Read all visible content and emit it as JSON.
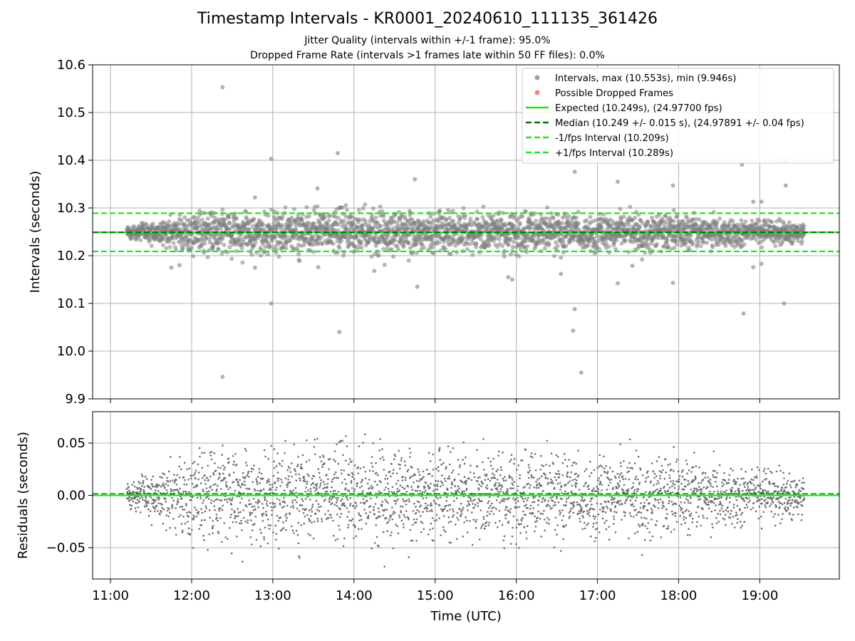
{
  "title": "Timestamp Intervals - KR0001_20240610_111135_361426",
  "subtitle_jitter": "Jitter Quality (intervals within +/-1 frame): 95.0%",
  "subtitle_dropped": "Dropped Frame Rate (intervals >1 frames late within 50 FF files): 0.0%",
  "colors": {
    "points": "#808080",
    "dropped": "#f05a5a",
    "expected": "#1ee61e",
    "median": "#0a6e0a",
    "fps_bounds": "#1ee61e",
    "grid": "#b0b0b0"
  },
  "chart_data": [
    {
      "type": "scatter",
      "panel": "top",
      "ylabel": "Intervals (seconds)",
      "ylim": [
        9.9,
        10.6
      ],
      "yticks": [
        9.9,
        10.0,
        10.1,
        10.2,
        10.3,
        10.4,
        10.5,
        10.6
      ],
      "ytick_labels": [
        "9.9",
        "10.0",
        "10.1",
        "10.2",
        "10.3",
        "10.4",
        "10.5",
        "10.6"
      ],
      "xlim_hours": [
        10.78,
        19.98
      ],
      "grid": true,
      "legend_position": "top-right",
      "legend": [
        {
          "label": "Intervals, max (10.553s), min (9.946s)",
          "kind": "marker",
          "color": "#808080"
        },
        {
          "label": "Possible Dropped Frames",
          "kind": "marker",
          "color": "#f05a5a"
        },
        {
          "label": "Expected (10.249s), (24.97700 fps)",
          "kind": "solid",
          "color": "#1ee61e"
        },
        {
          "label": "Median (10.249 +/- 0.015 s), (24.97891 +/- 0.04 fps)",
          "kind": "dashed",
          "color": "#0a6e0a"
        },
        {
          "label": "-1/fps Interval (10.209s)",
          "kind": "dashed",
          "color": "#1ee61e"
        },
        {
          "label": "+1/fps Interval (10.289s)",
          "kind": "dashed",
          "color": "#1ee61e"
        }
      ],
      "reference_lines": [
        {
          "name": "Expected",
          "y": 10.249,
          "style": "solid",
          "color": "#1ee61e"
        },
        {
          "name": "Median",
          "y": 10.249,
          "style": "dashed",
          "color": "#0a6e0a"
        },
        {
          "name": "-1/fps Interval",
          "y": 10.209,
          "style": "dashed",
          "color": "#1ee61e"
        },
        {
          "name": "+1/fps Interval",
          "y": 10.289,
          "style": "dashed",
          "color": "#1ee61e"
        }
      ],
      "dense_band": {
        "x_range_hours": [
          11.2,
          19.55
        ],
        "center": 10.249,
        "approx_points": 2950,
        "spread_envelope": [
          [
            11.2,
            0.006
          ],
          [
            11.7,
            0.012
          ],
          [
            12.0,
            0.022
          ],
          [
            13.0,
            0.022
          ],
          [
            15.0,
            0.021
          ],
          [
            16.0,
            0.02
          ],
          [
            17.0,
            0.018
          ],
          [
            18.0,
            0.017
          ],
          [
            19.0,
            0.013
          ],
          [
            19.55,
            0.009
          ]
        ]
      },
      "outliers": [
        {
          "x": 12.38,
          "y": 10.553
        },
        {
          "x": 12.38,
          "y": 9.946
        },
        {
          "x": 12.98,
          "y": 10.403
        },
        {
          "x": 12.98,
          "y": 10.1
        },
        {
          "x": 13.8,
          "y": 10.415
        },
        {
          "x": 13.82,
          "y": 10.04
        },
        {
          "x": 14.75,
          "y": 10.36
        },
        {
          "x": 14.78,
          "y": 10.135
        },
        {
          "x": 15.95,
          "y": 10.15
        },
        {
          "x": 15.9,
          "y": 10.155
        },
        {
          "x": 16.72,
          "y": 10.376
        },
        {
          "x": 16.72,
          "y": 10.088
        },
        {
          "x": 16.7,
          "y": 10.043
        },
        {
          "x": 16.8,
          "y": 9.955
        },
        {
          "x": 17.25,
          "y": 10.355
        },
        {
          "x": 17.25,
          "y": 10.142
        },
        {
          "x": 17.93,
          "y": 10.347
        },
        {
          "x": 17.93,
          "y": 10.143
        },
        {
          "x": 18.78,
          "y": 10.391
        },
        {
          "x": 18.8,
          "y": 10.079
        },
        {
          "x": 19.3,
          "y": 10.4
        },
        {
          "x": 19.3,
          "y": 10.1
        },
        {
          "x": 19.32,
          "y": 10.347
        },
        {
          "x": 19.02,
          "y": 10.183
        },
        {
          "x": 11.75,
          "y": 10.175
        },
        {
          "x": 11.85,
          "y": 10.18
        },
        {
          "x": 12.78,
          "y": 10.322
        },
        {
          "x": 12.78,
          "y": 10.175
        },
        {
          "x": 13.55,
          "y": 10.341
        },
        {
          "x": 13.56,
          "y": 10.176
        },
        {
          "x": 14.25,
          "y": 10.168
        },
        {
          "x": 16.55,
          "y": 10.162
        },
        {
          "x": 17.43,
          "y": 10.179
        },
        {
          "x": 18.92,
          "y": 10.313
        },
        {
          "x": 18.92,
          "y": 10.176
        },
        {
          "x": 19.02,
          "y": 10.313
        }
      ]
    },
    {
      "type": "scatter",
      "panel": "bottom",
      "xlabel": "Time (UTC)",
      "ylabel": "Residuals (seconds)",
      "ylim": [
        -0.08,
        0.08
      ],
      "yticks": [
        -0.05,
        0.0,
        0.05
      ],
      "ytick_labels": [
        "−0.05",
        "0.00",
        "0.05"
      ],
      "xlim_hours": [
        10.78,
        19.98
      ],
      "xticks_hours": [
        11,
        12,
        13,
        14,
        15,
        16,
        17,
        18,
        19
      ],
      "xtick_labels": [
        "11:00",
        "12:00",
        "13:00",
        "14:00",
        "15:00",
        "16:00",
        "17:00",
        "18:00",
        "19:00"
      ],
      "grid": true,
      "zero_line": {
        "y": 0.0,
        "color": "#1ee61e"
      },
      "dense_band": {
        "x_range_hours": [
          11.2,
          19.55
        ],
        "center": 0.0,
        "approx_points": 2950
      }
    }
  ]
}
